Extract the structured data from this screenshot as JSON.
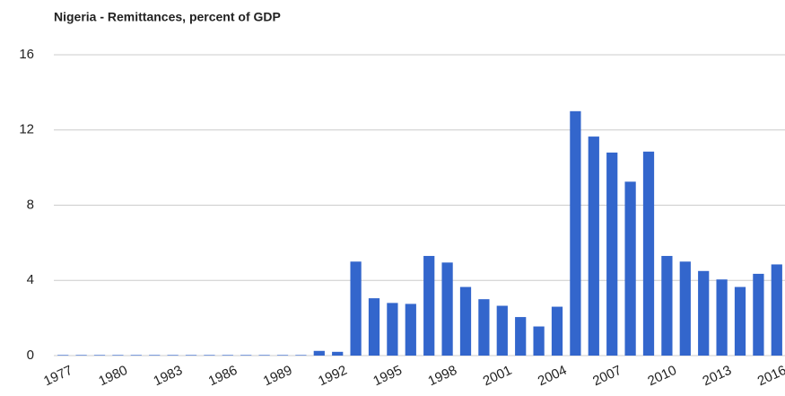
{
  "chart_data": {
    "type": "bar",
    "title": "Nigeria - Remittances, percent of GDP",
    "categories": [
      "1977",
      null,
      null,
      "1980",
      null,
      null,
      "1983",
      null,
      null,
      "1986",
      null,
      null,
      "1989",
      null,
      null,
      "1992",
      null,
      null,
      "1995",
      null,
      null,
      "1998",
      null,
      null,
      "2001",
      null,
      null,
      "2004",
      null,
      null,
      "2007",
      null,
      null,
      "2010",
      null,
      null,
      "2013",
      null,
      null,
      "2016"
    ],
    "values": [
      0.03,
      0.03,
      0.03,
      0.03,
      0.03,
      0.03,
      0.03,
      0.03,
      0.03,
      0.03,
      0.03,
      0.03,
      0.03,
      0.03,
      0.25,
      0.2,
      5.0,
      3.05,
      2.8,
      2.75,
      5.3,
      4.95,
      3.65,
      3.0,
      2.65,
      2.05,
      1.55,
      2.6,
      13.0,
      11.65,
      10.8,
      9.25,
      10.85,
      5.3,
      5.0,
      4.5,
      4.05,
      3.65,
      4.35,
      4.85
    ],
    "color": "#3366cc",
    "ylim": [
      0,
      16
    ],
    "yticks": [
      0,
      4,
      8,
      12,
      16
    ],
    "grid": true
  }
}
